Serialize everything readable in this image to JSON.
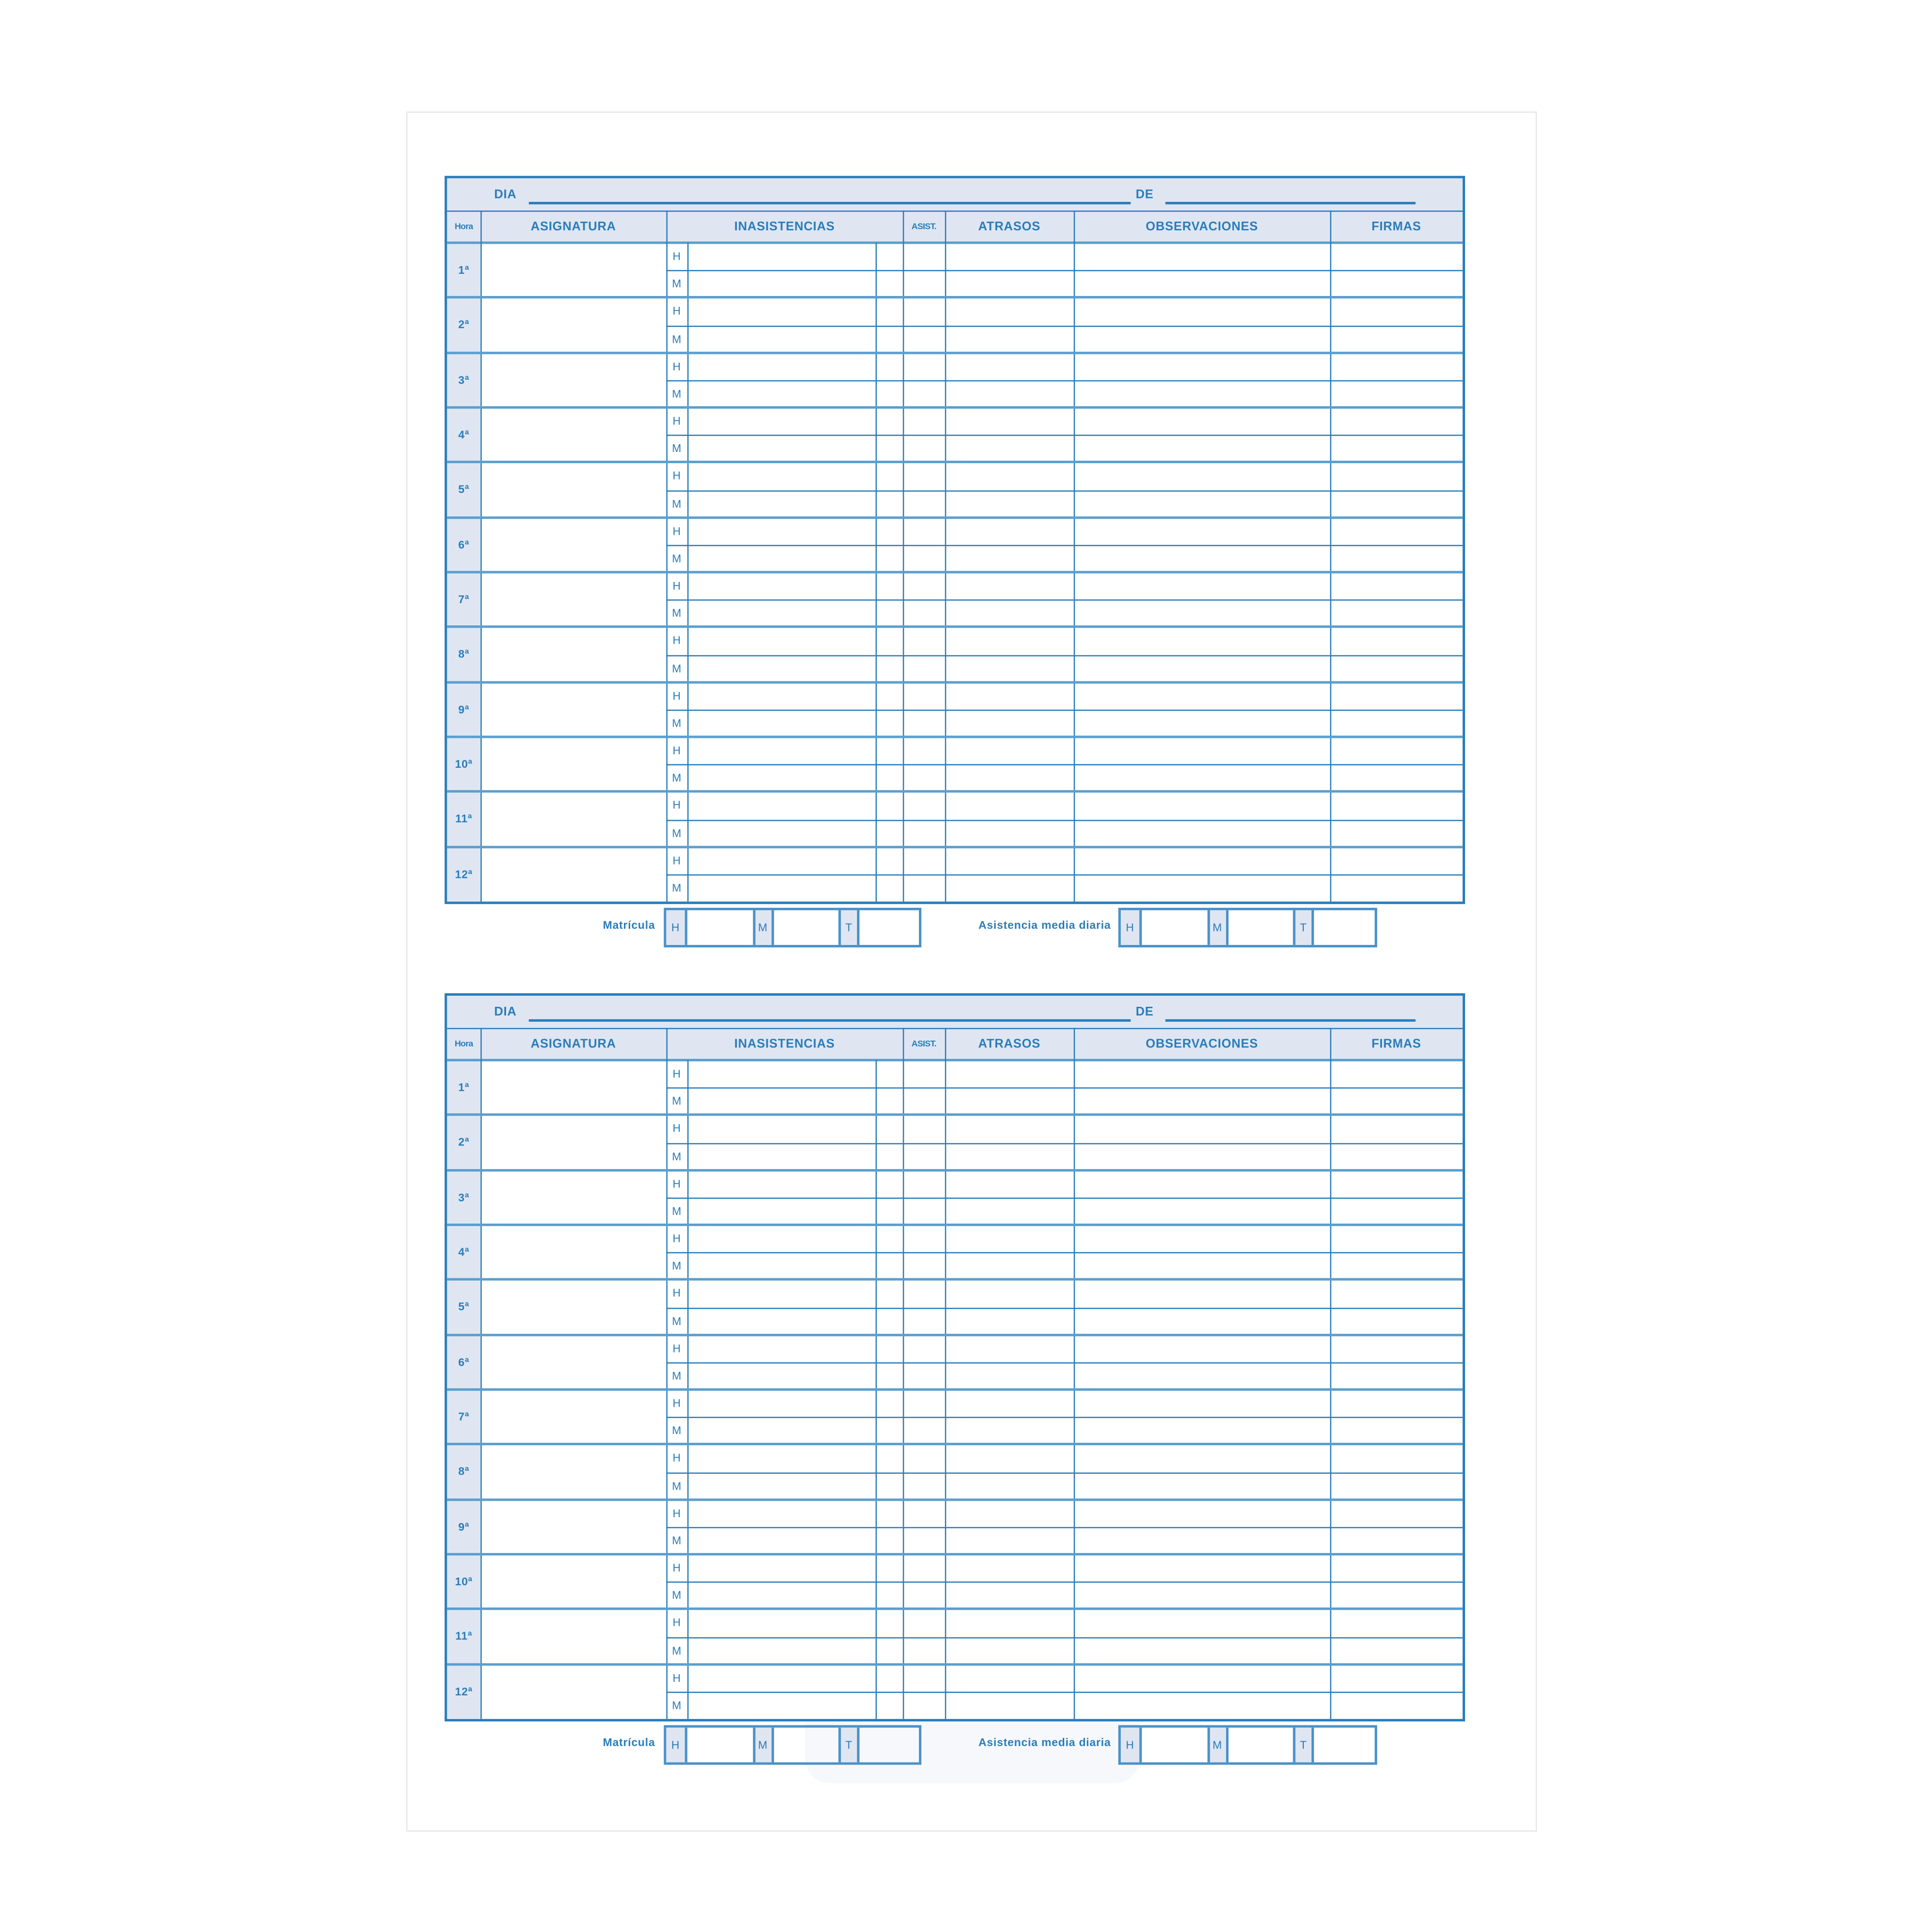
{
  "forms": [
    {
      "dia_label": "DIA",
      "de_label": "DE",
      "headers": {
        "hora": "Hora",
        "asignatura": "ASIGNATURA",
        "inasistencias": "INASISTENCIAS",
        "asist": "ASIST.",
        "atrasos": "ATRASOS",
        "observaciones": "OBSERVACIONES",
        "firmas": "FIRMAS"
      },
      "hours": [
        "1ª",
        "2ª",
        "3ª",
        "4ª",
        "5ª",
        "6ª",
        "7ª",
        "8ª",
        "9ª",
        "10ª",
        "11ª",
        "12ª"
      ],
      "sub_rows": [
        "H",
        "M"
      ],
      "footer": {
        "matricula_label": "Matrícula",
        "asistencia_label": "Asistencia media diaria",
        "boxes": [
          "H",
          "M",
          "T"
        ]
      }
    },
    {
      "dia_label": "DIA",
      "de_label": "DE",
      "headers": {
        "hora": "Hora",
        "asignatura": "ASIGNATURA",
        "inasistencias": "INASISTENCIAS",
        "asist": "ASIST.",
        "atrasos": "ATRASOS",
        "observaciones": "OBSERVACIONES",
        "firmas": "FIRMAS"
      },
      "hours": [
        "1ª",
        "2ª",
        "3ª",
        "4ª",
        "5ª",
        "6ª",
        "7ª",
        "8ª",
        "9ª",
        "10ª",
        "11ª",
        "12ª"
      ],
      "sub_rows": [
        "H",
        "M"
      ],
      "footer": {
        "matricula_label": "Matrícula",
        "asistencia_label": "Asistencia media diaria",
        "boxes": [
          "H",
          "M",
          "T"
        ]
      }
    }
  ],
  "colors": {
    "line": "#2a7dba",
    "header_band": "#dfe6f2",
    "text": "#1e6fb0"
  }
}
